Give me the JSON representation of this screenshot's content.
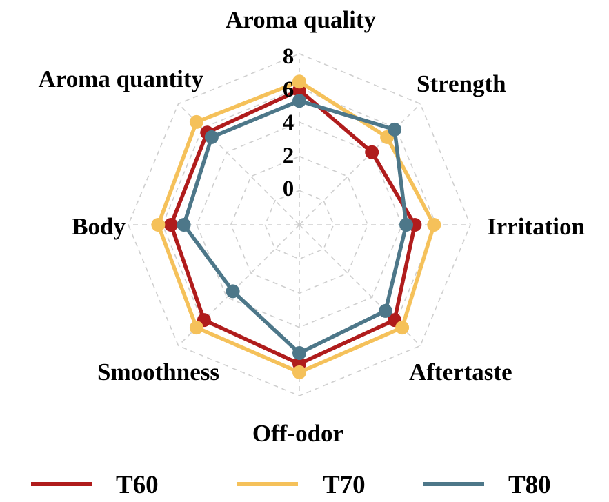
{
  "chart_data": {
    "type": "radar",
    "axes": [
      "Aroma quality",
      "Strength",
      "Irritation",
      "Aftertaste",
      "Off-odor",
      "Smoothness",
      "Body",
      "Aroma quantity"
    ],
    "rlim": [
      0,
      8
    ],
    "ticks": [
      "0",
      "2",
      "4",
      "6",
      "8"
    ],
    "grid": true,
    "legend_position": "bottom",
    "series": [
      {
        "name": "T60",
        "color": "#b01c1c",
        "values": [
          6.3,
          4.8,
          5.4,
          6.3,
          6.5,
          6.3,
          6.0,
          6.1
        ]
      },
      {
        "name": "T70",
        "color": "#f5c15a",
        "values": [
          6.7,
          5.8,
          6.3,
          6.8,
          6.9,
          6.8,
          6.6,
          6.8
        ]
      },
      {
        "name": "T80",
        "color": "#4d7789",
        "values": [
          5.8,
          6.3,
          5.0,
          5.7,
          6.0,
          4.4,
          5.4,
          5.8
        ]
      }
    ]
  }
}
